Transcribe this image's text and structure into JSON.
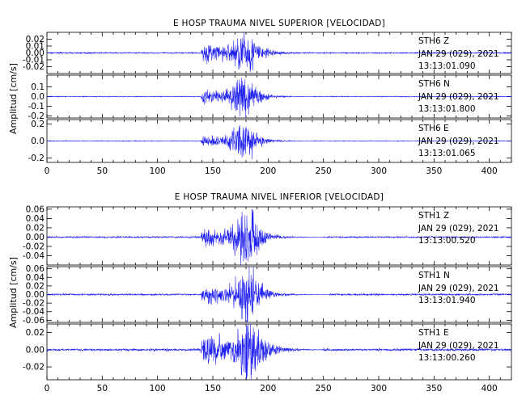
{
  "chart_data": [
    {
      "type": "line",
      "title": "E HOSP TRAUMA NIVEL SUPERIOR [VELOCIDAD]",
      "ylabel": "Amplitud [cm/s]",
      "xlim": [
        0,
        420
      ],
      "x_ticks": [
        0,
        50,
        100,
        150,
        200,
        250,
        300,
        350,
        400
      ],
      "color": "#1c1cf0",
      "traces": [
        {
          "channel": "STH6   Z",
          "date": "JAN 29 (029), 2021",
          "time": "13:13:01.090",
          "ylim": [
            -0.03,
            0.03
          ],
          "y_ticks": [
            0.02,
            0.01,
            0.0,
            -0.01,
            -0.02
          ],
          "y_tick_labels": [
            "0.02",
            "0.01",
            "0.00",
            "-0.01",
            "-0.02"
          ],
          "envelope": {
            "noise": 0.0009,
            "start": 139,
            "peak_center": 180,
            "peak_amp": 0.021,
            "plateau_amp": 0.01,
            "end": 232
          }
        },
        {
          "channel": "STH6   N",
          "date": "JAN 29 (029), 2021",
          "time": "13:13:01.800",
          "ylim": [
            -0.22,
            0.22
          ],
          "y_ticks": [
            0.1,
            0.0,
            -0.1,
            -0.2
          ],
          "y_tick_labels": [
            "0.1",
            "0.0",
            "-0.1",
            "-0.2"
          ],
          "envelope": {
            "noise": 0.004,
            "start": 139,
            "peak_center": 178,
            "peak_amp": 0.17,
            "plateau_amp": 0.05,
            "end": 240
          }
        },
        {
          "channel": "STH6   E",
          "date": "JAN 29 (029), 2021",
          "time": "13:13:01.065",
          "ylim": [
            -0.25,
            0.25
          ],
          "y_ticks": [
            0.2,
            0.0,
            -0.2
          ],
          "y_tick_labels": [
            "0.2",
            "0.0",
            "-0.2"
          ],
          "envelope": {
            "noise": 0.004,
            "start": 139,
            "peak_center": 178,
            "peak_amp": 0.19,
            "plateau_amp": 0.05,
            "end": 240
          }
        }
      ]
    },
    {
      "type": "line",
      "title": "E HOSP TRAUMA NIVEL INFERIOR [VELOCIDAD]",
      "ylabel": "Amplitud [cm/s]",
      "xlim": [
        0,
        420
      ],
      "x_ticks": [
        0,
        50,
        100,
        150,
        200,
        250,
        300,
        350,
        400
      ],
      "color": "#1c1cf0",
      "traces": [
        {
          "channel": "STH1   Z",
          "date": "JAN 29 (029), 2021",
          "time": "13:13:00.520",
          "ylim": [
            -0.06,
            0.065
          ],
          "y_ticks": [
            0.06,
            0.04,
            0.02,
            0.0,
            -0.02,
            -0.04
          ],
          "y_tick_labels": [
            "0.06",
            "0.04",
            "0.02",
            "0.00",
            "-0.02",
            "-0.04"
          ],
          "envelope": {
            "noise": 0.0015,
            "start": 139,
            "peak_center": 182,
            "peak_amp": 0.052,
            "plateau_amp": 0.012,
            "end": 250
          }
        },
        {
          "channel": "STH1   N",
          "date": "JAN 29 (029), 2021",
          "time": "13:13:01.940",
          "ylim": [
            -0.065,
            0.065
          ],
          "y_ticks": [
            0.06,
            0.04,
            0.02,
            0.0,
            -0.02,
            -0.04,
            -0.06
          ],
          "y_tick_labels": [
            "0.06",
            "0.04",
            "0.02",
            "0.00",
            "-0.02",
            "-0.04",
            "-0.06"
          ],
          "envelope": {
            "noise": 0.0018,
            "start": 139,
            "peak_center": 182,
            "peak_amp": 0.055,
            "plateau_amp": 0.015,
            "end": 255
          }
        },
        {
          "channel": "STH1   E",
          "date": "JAN 29 (029), 2021",
          "time": "13:13:00.260",
          "ylim": [
            -0.035,
            0.03
          ],
          "y_ticks": [
            0.02,
            0.0,
            -0.02
          ],
          "y_tick_labels": [
            "0.02",
            "0.00",
            "-0.02"
          ],
          "envelope": {
            "noise": 0.0012,
            "start": 139,
            "peak_center": 183,
            "peak_amp": 0.027,
            "plateau_amp": 0.013,
            "end": 250
          }
        }
      ]
    }
  ]
}
